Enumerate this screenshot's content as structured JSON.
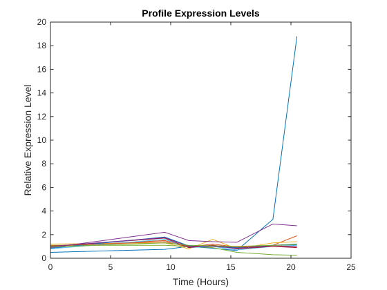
{
  "chart_data": {
    "type": "line",
    "title": "Profile Expression Levels",
    "xlabel": "Time (Hours)",
    "ylabel": "Relative Expression Level",
    "xlim": [
      0,
      25
    ],
    "ylim": [
      0,
      20
    ],
    "xticks": [
      0,
      5,
      10,
      15,
      20,
      25
    ],
    "yticks": [
      0,
      2,
      4,
      6,
      8,
      10,
      12,
      14,
      16,
      18,
      20
    ],
    "grid": false,
    "legend": false,
    "x": [
      0,
      9.5,
      11.5,
      13.5,
      15.5,
      18.5,
      20.5
    ],
    "series": [
      {
        "color": "#0072BD",
        "values": [
          0.5,
          0.75,
          1.0,
          0.85,
          0.65,
          3.3,
          18.8
        ]
      },
      {
        "color": "#D95319",
        "values": [
          1.0,
          1.5,
          1.0,
          1.1,
          0.9,
          1.1,
          1.9
        ]
      },
      {
        "color": "#EDB120",
        "values": [
          1.2,
          1.3,
          0.8,
          1.6,
          0.8,
          1.3,
          1.4
        ]
      },
      {
        "color": "#7E2F8E",
        "values": [
          0.9,
          2.2,
          1.5,
          1.4,
          1.35,
          2.9,
          2.75
        ]
      },
      {
        "color": "#77AC30",
        "values": [
          1.1,
          1.1,
          1.0,
          0.9,
          0.5,
          0.3,
          0.25
        ]
      },
      {
        "color": "#4DBEEE",
        "values": [
          0.8,
          1.6,
          0.9,
          1.0,
          0.7,
          1.0,
          1.1
        ]
      },
      {
        "color": "#A2142F",
        "values": [
          1.0,
          1.7,
          0.9,
          1.1,
          0.8,
          1.0,
          0.9
        ]
      },
      {
        "color": "#0072BD",
        "values": [
          0.85,
          1.8,
          1.05,
          1.0,
          0.9,
          1.1,
          1.2
        ]
      },
      {
        "color": "#D95319",
        "values": [
          1.05,
          1.4,
          0.95,
          1.2,
          0.95,
          1.0,
          1.0
        ]
      },
      {
        "color": "#7E2F8E",
        "values": [
          1.0,
          1.75,
          1.0,
          1.0,
          0.85,
          1.05,
          1.0
        ]
      },
      {
        "color": "#77AC30",
        "values": [
          0.95,
          1.3,
          1.1,
          1.05,
          1.0,
          1.1,
          1.15
        ]
      }
    ]
  }
}
